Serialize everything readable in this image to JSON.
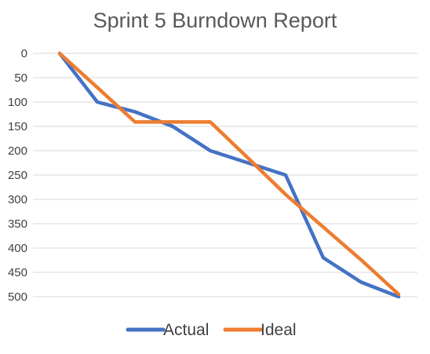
{
  "chart_data": {
    "type": "line",
    "title": "Sprint 5 Burndown Report",
    "xlabel": "",
    "ylabel": "",
    "x": [
      0,
      1,
      2,
      3,
      4,
      5,
      6,
      7,
      8,
      9
    ],
    "ylim": [
      0,
      500
    ],
    "y_reversed": true,
    "y_ticks": [
      0,
      50,
      100,
      150,
      200,
      250,
      300,
      350,
      400,
      450,
      500
    ],
    "grid": true,
    "legend_position": "bottom",
    "series": [
      {
        "name": "Actual",
        "color": "#4472C4",
        "values": [
          0,
          100,
          120,
          150,
          200,
          225,
          250,
          420,
          470,
          500
        ]
      },
      {
        "name": "Ideal",
        "color": "#ED7D31",
        "values": [
          0,
          70,
          141,
          141,
          141,
          215,
          290,
          357,
          424,
          495
        ]
      }
    ]
  }
}
